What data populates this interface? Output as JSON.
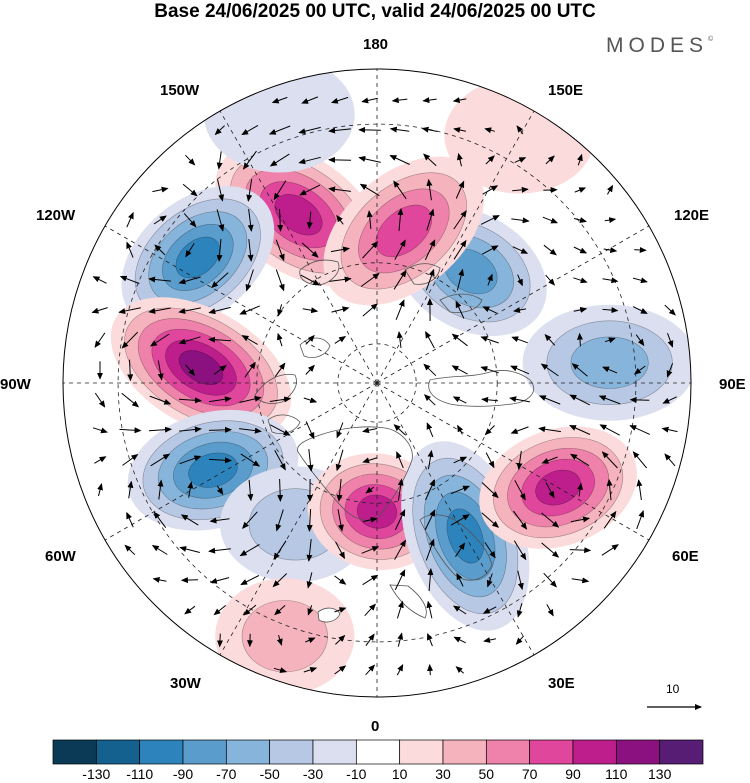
{
  "title": "Base 24/06/2025 00 UTC, valid 24/06/2025 00 UTC",
  "brand": "MODES",
  "brand_mark": "©",
  "longitude_labels": {
    "n180": "180",
    "e150": "150E",
    "e120": "120E",
    "e90": "90E",
    "e60": "60E",
    "e30": "30E",
    "s0": "0",
    "w30": "30W",
    "w60": "60W",
    "w90": "90W",
    "w120": "120W",
    "w150": "150W"
  },
  "reference_vector": "10",
  "colorbar": {
    "ticks": [
      "-130",
      "-110",
      "-90",
      "-70",
      "-50",
      "-30",
      "-10",
      "10",
      "30",
      "50",
      "70",
      "90",
      "110",
      "130"
    ],
    "colors": [
      "#0b3a57",
      "#14608f",
      "#2d84bd",
      "#5a9ccc",
      "#87b4da",
      "#b6c8e4",
      "#dcdff0",
      "#ffffff",
      "#fbdbdb",
      "#f5b3bd",
      "#ef82aa",
      "#e0479c",
      "#bd1e8c",
      "#8a117f",
      "#571c74"
    ]
  },
  "map": {
    "projection": "north-polar-stereographic",
    "anomaly_cells": [
      {
        "lon": 205,
        "lat": 45,
        "value": 100,
        "stretch": 1.6,
        "rot": 35
      },
      {
        "lon": 235,
        "lat": 38,
        "value": -90,
        "stretch": 1.5,
        "rot": -40
      },
      {
        "lon": 265,
        "lat": 47,
        "value": 115,
        "stretch": 1.7,
        "rot": 30
      },
      {
        "lon": 298,
        "lat": 45,
        "value": -100,
        "stretch": 1.5,
        "rot": -15
      },
      {
        "lon": 330,
        "lat": 50,
        "value": -30,
        "stretch": 1.3,
        "rot": 0
      },
      {
        "lon": 340,
        "lat": 28,
        "value": 30,
        "stretch": 1.2,
        "rot": 0
      },
      {
        "lon": 0,
        "lat": 58,
        "value": 95,
        "stretch": 1.2,
        "rot": 10
      },
      {
        "lon": 30,
        "lat": 47,
        "value": -90,
        "stretch": 1.7,
        "rot": 70
      },
      {
        "lon": 60,
        "lat": 40,
        "value": 90,
        "stretch": 1.4,
        "rot": -20
      },
      {
        "lon": 95,
        "lat": 35,
        "value": -60,
        "stretch": 1.5,
        "rot": 0
      },
      {
        "lon": 140,
        "lat": 54,
        "value": -80,
        "stretch": 1.4,
        "rot": 30
      },
      {
        "lon": 170,
        "lat": 52,
        "value": 70,
        "stretch": 1.6,
        "rot": -40
      },
      {
        "lon": 200,
        "lat": 25,
        "value": -25,
        "stretch": 1.3,
        "rot": 0
      },
      {
        "lon": 150,
        "lat": 25,
        "value": 20,
        "stretch": 1.3,
        "rot": 0
      }
    ]
  }
}
